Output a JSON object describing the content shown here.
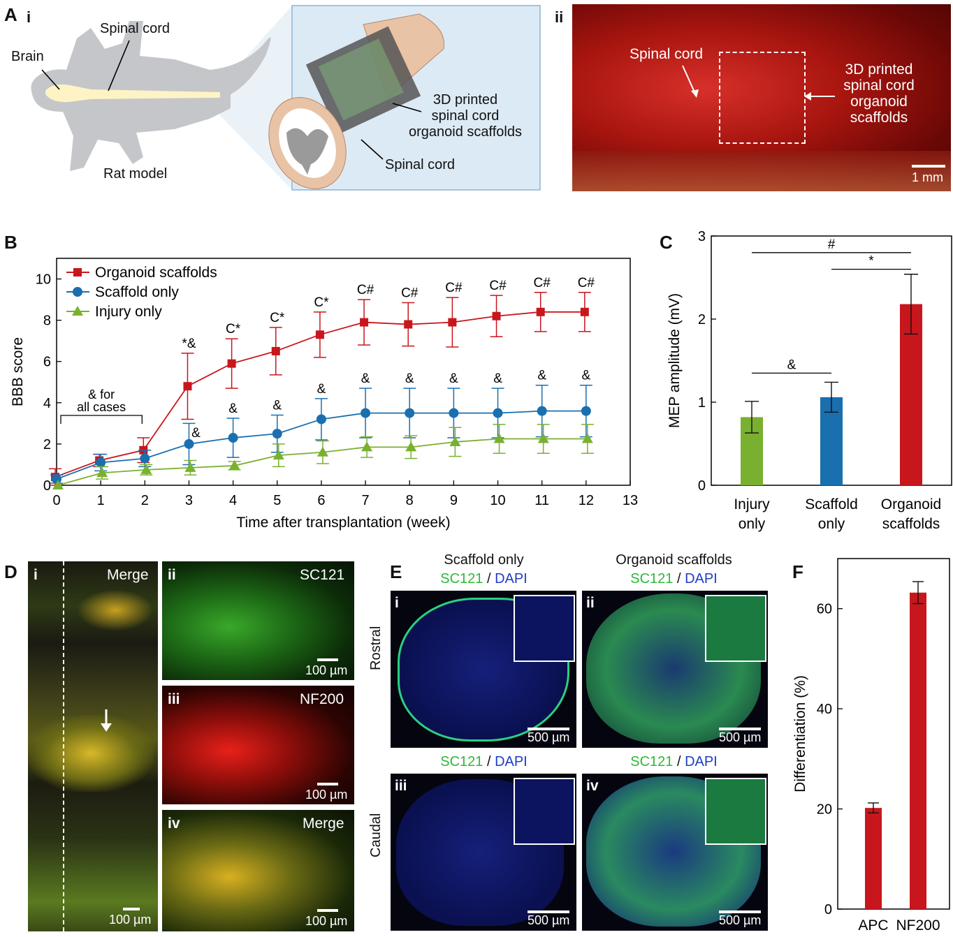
{
  "panels": {
    "A": "A",
    "B": "B",
    "C": "C",
    "D": "D",
    "E": "E",
    "F": "F"
  },
  "panelA": {
    "sub_i": "i",
    "sub_ii": "ii",
    "brain": "Brain",
    "spinal_cord_top": "Spinal cord",
    "rat_model": "Rat model",
    "scaffold_line1": "3D printed",
    "scaffold_line2": "spinal cord",
    "scaffold_line3": "organoid scaffolds",
    "spinal_cord_bottom": "Spinal cord",
    "photo_spinal_cord": "Spinal cord",
    "photo_label_1": "3D printed",
    "photo_label_2": "spinal cord",
    "photo_label_3": "organoid",
    "photo_label_4": "scaffolds",
    "photo_scale": "1 mm"
  },
  "panelD": {
    "i": "i",
    "ii": "ii",
    "iii": "iii",
    "iv": "iv",
    "merge_i": "Merge",
    "sc121": "SC121",
    "nf200": "NF200",
    "merge_iv": "Merge",
    "scale": "100 µm"
  },
  "panelE": {
    "col1_title": "Scaffold only",
    "col2_title": "Organoid scaffolds",
    "sc121": "SC121",
    "slash": " / ",
    "dapi": "DAPI",
    "rostral": "Rostral",
    "caudal": "Caudal",
    "i": "i",
    "ii": "ii",
    "iii": "iii",
    "iv": "iv",
    "scale": "500 µm"
  },
  "colors": {
    "red": "#c8161d",
    "blue": "#1a6faf",
    "green": "#7ab030",
    "sc121_green": "#2db83a",
    "dapi_blue": "#1f3cc8"
  },
  "chart_data": [
    {
      "id": "B",
      "type": "line",
      "xlabel": "Time after transplantation (week)",
      "ylabel": "BBB score",
      "xlim": [
        0,
        13
      ],
      "ylim": [
        0,
        11
      ],
      "xticks": [
        "0",
        "1",
        "2",
        "3",
        "4",
        "5",
        "6",
        "7",
        "8",
        "9",
        "10",
        "11",
        "12",
        "13"
      ],
      "yticks": [
        "0",
        "2",
        "4",
        "6",
        "8",
        "10"
      ],
      "x": [
        0,
        1,
        2,
        3,
        4,
        5,
        6,
        7,
        8,
        9,
        10,
        11,
        12
      ],
      "series": [
        {
          "name": "Organoid scaffolds",
          "color": "#c8161d",
          "marker": "square",
          "values": [
            0.4,
            1.2,
            1.7,
            4.8,
            5.9,
            6.5,
            7.3,
            7.9,
            7.8,
            7.9,
            8.2,
            8.4,
            8.4
          ],
          "errors": [
            0.4,
            0.3,
            0.6,
            1.6,
            1.2,
            1.15,
            1.1,
            1.1,
            1.05,
            1.2,
            1.0,
            0.95,
            0.95
          ]
        },
        {
          "name": "Scaffold only",
          "color": "#1a6faf",
          "marker": "circle",
          "values": [
            0.3,
            1.1,
            1.3,
            2.0,
            2.3,
            2.5,
            3.2,
            3.5,
            3.5,
            3.5,
            3.5,
            3.6,
            3.6
          ],
          "errors": [
            0.2,
            0.4,
            0.4,
            1.0,
            0.95,
            0.9,
            1.0,
            1.2,
            1.2,
            1.2,
            1.2,
            1.25,
            1.25
          ]
        },
        {
          "name": "Injury only",
          "color": "#7ab030",
          "marker": "triangle",
          "values": [
            0.0,
            0.6,
            0.75,
            0.85,
            0.95,
            1.45,
            1.6,
            1.85,
            1.85,
            2.1,
            2.25,
            2.25,
            2.25
          ],
          "errors": [
            0.0,
            0.3,
            0.25,
            0.35,
            0.2,
            0.55,
            0.55,
            0.5,
            0.55,
            0.7,
            0.7,
            0.7,
            0.7
          ]
        }
      ],
      "annotations": [
        {
          "x": 3,
          "text": "*&",
          "near": "Organoid scaffolds"
        },
        {
          "x": 4,
          "text": "C*",
          "near": "Organoid scaffolds"
        },
        {
          "x": 5,
          "text": "C*",
          "near": "Organoid scaffolds"
        },
        {
          "x": 6,
          "text": "C*",
          "near": "Organoid scaffolds"
        },
        {
          "x": 7,
          "text": "C#",
          "near": "Organoid scaffolds"
        },
        {
          "x": 8,
          "text": "C#",
          "near": "Organoid scaffolds"
        },
        {
          "x": 9,
          "text": "C#",
          "near": "Organoid scaffolds"
        },
        {
          "x": 10,
          "text": "C#",
          "near": "Organoid scaffolds"
        },
        {
          "x": 11,
          "text": "C#",
          "near": "Organoid scaffolds"
        },
        {
          "x": 12,
          "text": "C#",
          "near": "Organoid scaffolds"
        },
        {
          "x": 3,
          "text": "&",
          "near": "Scaffold only"
        },
        {
          "x": 4,
          "text": "&",
          "near": "Scaffold only"
        },
        {
          "x": 5,
          "text": "&",
          "near": "Scaffold only"
        },
        {
          "x": 6,
          "text": "&",
          "near": "Scaffold only"
        },
        {
          "x": 7,
          "text": "&",
          "near": "Scaffold only"
        },
        {
          "x": 8,
          "text": "&",
          "near": "Scaffold only"
        },
        {
          "x": 9,
          "text": "&",
          "near": "Scaffold only"
        },
        {
          "x": 10,
          "text": "&",
          "near": "Scaffold only"
        },
        {
          "x": 11,
          "text": "&",
          "near": "Scaffold only"
        },
        {
          "x": 12,
          "text": "&",
          "near": "Scaffold only"
        }
      ],
      "bracket": {
        "from": 0,
        "to": 2,
        "line1": "& for",
        "line2": "all cases"
      }
    },
    {
      "id": "C",
      "type": "bar",
      "ylabel": "MEP amplitude (mV)",
      "ylim": [
        0,
        3
      ],
      "yticks": [
        "0",
        "1",
        "2",
        "3"
      ],
      "categories": [
        [
          "Injury",
          "only"
        ],
        [
          "Scaffold",
          "only"
        ],
        [
          "Organoid",
          "scaffolds"
        ]
      ],
      "values": [
        0.82,
        1.06,
        2.18
      ],
      "errors": [
        0.19,
        0.18,
        0.36
      ],
      "colors": [
        "#7ab030",
        "#1a6faf",
        "#c8161d"
      ],
      "significance": [
        {
          "from": 0,
          "to": 1,
          "text": "&",
          "level": 1.35
        },
        {
          "from": 1,
          "to": 2,
          "text": "*",
          "level": 2.6
        },
        {
          "from": 0,
          "to": 2,
          "text": "#",
          "level": 2.8
        }
      ]
    },
    {
      "id": "F",
      "type": "bar",
      "ylabel": "Differentiation (%)",
      "ylim": [
        0,
        70
      ],
      "yticks": [
        "0",
        "20",
        "40",
        "60"
      ],
      "categories": [
        "APC",
        "NF200"
      ],
      "values": [
        20.2,
        63.2
      ],
      "errors": [
        1.0,
        2.2
      ],
      "colors": [
        "#c8161d",
        "#c8161d"
      ]
    }
  ]
}
